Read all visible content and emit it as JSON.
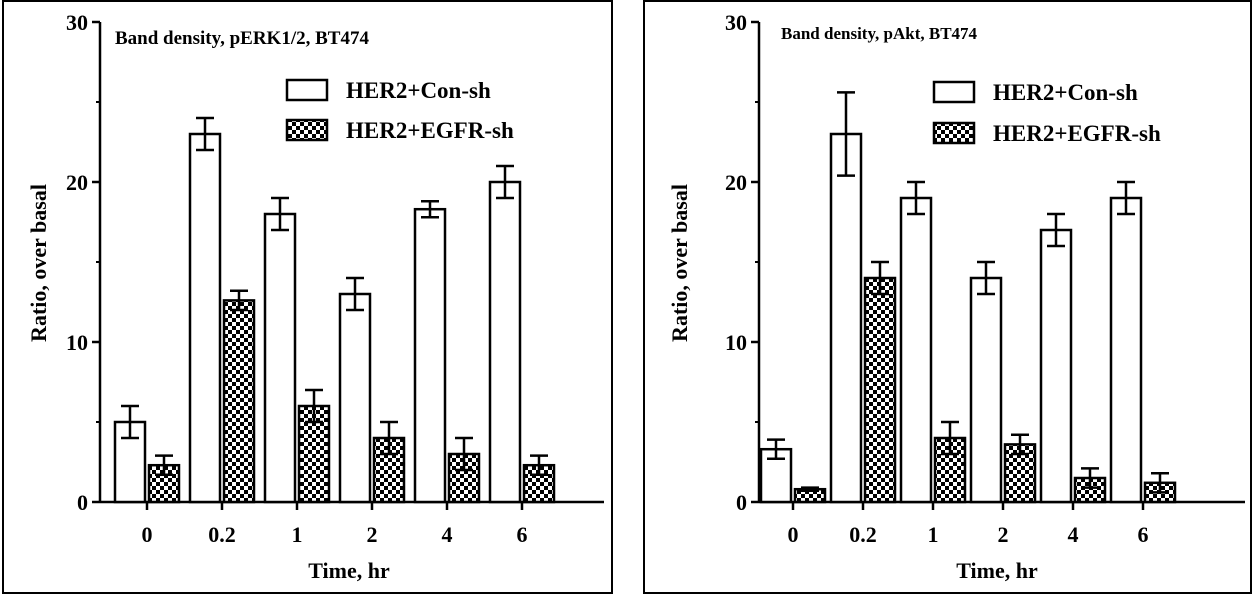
{
  "chart_data": [
    {
      "type": "bar",
      "title": "Band density, pERK1/2, BT474",
      "xlabel": "Time, hr",
      "ylabel": "Ratio, over basal",
      "ylim": [
        0,
        30
      ],
      "yticks": [
        "0",
        "10",
        "20",
        "30"
      ],
      "categories": [
        "0",
        "0.2",
        "1",
        "2",
        "4",
        "6"
      ],
      "legend_position": "top-right",
      "series": [
        {
          "name": "HER2+Con-sh",
          "pattern": "open",
          "values": [
            5.0,
            23.0,
            18.0,
            13.0,
            18.3,
            20.0
          ],
          "errors": [
            1.0,
            1.0,
            1.0,
            1.0,
            0.5,
            1.0
          ]
        },
        {
          "name": "HER2+EGFR-sh",
          "pattern": "checkered",
          "values": [
            2.3,
            12.6,
            6.0,
            4.0,
            3.0,
            2.3
          ],
          "errors": [
            0.6,
            0.6,
            1.0,
            1.0,
            1.0,
            0.6
          ]
        }
      ]
    },
    {
      "type": "bar",
      "title": "Band density, pAkt, BT474",
      "xlabel": "Time, hr",
      "ylabel": "Ratio, over basal",
      "ylim": [
        0,
        30
      ],
      "yticks": [
        "0",
        "10",
        "20",
        "30"
      ],
      "categories": [
        "0",
        "0.2",
        "1",
        "2",
        "4",
        "6"
      ],
      "legend_position": "top-right",
      "series": [
        {
          "name": "HER2+Con-sh",
          "pattern": "open",
          "values": [
            3.3,
            23.0,
            19.0,
            14.0,
            17.0,
            19.0
          ],
          "errors": [
            0.6,
            2.6,
            1.0,
            1.0,
            1.0,
            1.0
          ]
        },
        {
          "name": "HER2+EGFR-sh",
          "pattern": "checkered",
          "values": [
            0.8,
            14.0,
            4.0,
            3.6,
            1.5,
            1.2
          ],
          "errors": [
            0.1,
            1.0,
            1.0,
            0.6,
            0.6,
            0.6
          ]
        }
      ]
    }
  ]
}
